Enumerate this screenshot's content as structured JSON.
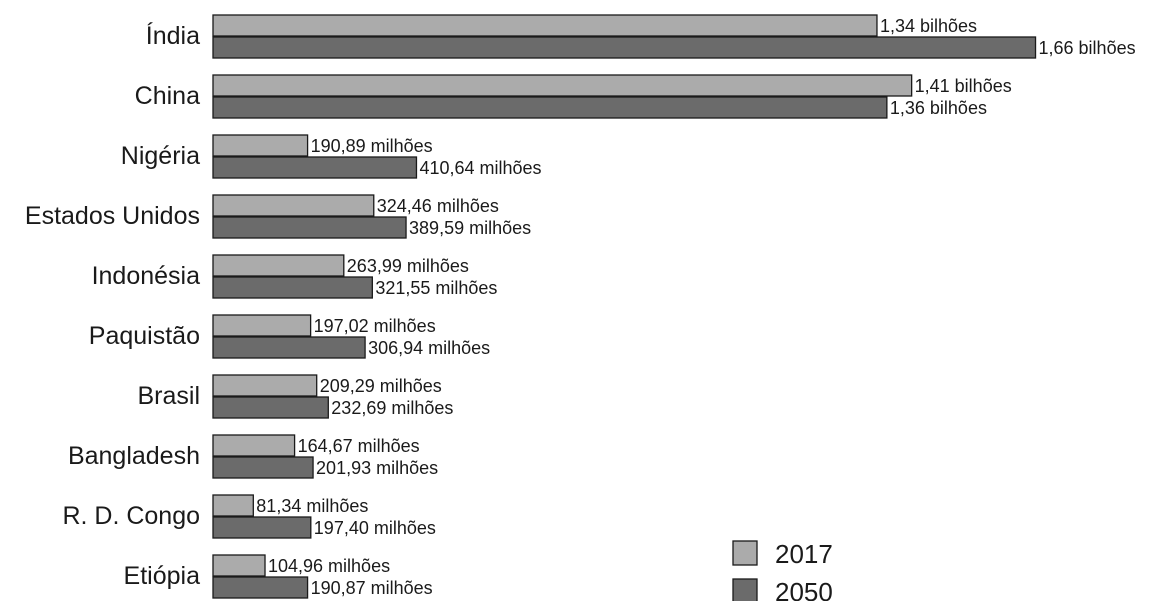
{
  "chart_data": {
    "type": "bar",
    "orientation": "horizontal",
    "categories": [
      "Índia",
      "China",
      "Nigéria",
      "Estados Unidos",
      "Indonésia",
      "Paquistão",
      "Brasil",
      "Bangladesh",
      "R. D. Congo",
      "Etiópia"
    ],
    "series": [
      {
        "name": "2017",
        "color": "#ababab",
        "values": [
          1340,
          1410,
          190.89,
          324.46,
          263.99,
          197.02,
          209.29,
          164.67,
          81.34,
          104.96
        ],
        "labels": [
          "1,34 bilhões",
          "1,41 bilhões",
          "190,89 milhões",
          "324,46 milhões",
          "263,99 milhões",
          "197,02 milhões",
          "209,29 milhões",
          "164,67 milhões",
          "81,34 milhões",
          "104,96 milhões"
        ]
      },
      {
        "name": "2050",
        "color": "#6b6b6b",
        "values": [
          1660,
          1360,
          410.64,
          389.59,
          321.55,
          306.94,
          232.69,
          201.93,
          197.4,
          190.87
        ],
        "labels": [
          "1,66 bilhões",
          "1,36 bilhões",
          "410,64 milhões",
          "389,59 milhões",
          "321,55 milhões",
          "306,94 milhões",
          "232,69 milhões",
          "201,93 milhões",
          "197,40 milhões",
          "190,87 milhões"
        ]
      }
    ],
    "legend_position": "bottom-right",
    "grid": false
  }
}
